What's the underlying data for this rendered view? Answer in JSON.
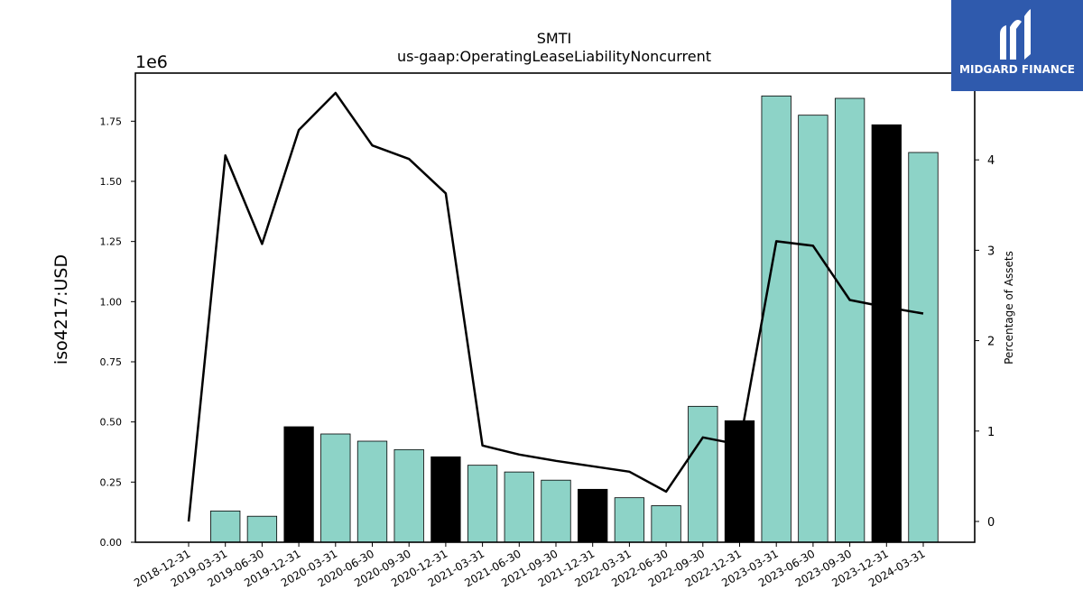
{
  "chart_data": {
    "type": "bar",
    "title": "SMTI",
    "subtitle": "us-gaap:OperatingLeaseLiabilityNoncurrent",
    "ylabel": "iso4217:USD",
    "y_offset_label": "1e6",
    "y2label": "Percentage of Assets",
    "ylim": [
      0,
      1950000
    ],
    "y2lim": [
      -0.23,
      4.96
    ],
    "yticks": [
      "0.00",
      "0.25",
      "0.50",
      "0.75",
      "1.00",
      "1.25",
      "1.50",
      "1.75"
    ],
    "y2ticks": [
      "0",
      "1",
      "2",
      "3",
      "4"
    ],
    "categories": [
      "2018-12-31",
      "2019-03-31",
      "2019-06-30",
      "2019-12-31",
      "2020-03-31",
      "2020-06-30",
      "2020-09-30",
      "2020-12-31",
      "2021-03-31",
      "2021-06-30",
      "2021-09-30",
      "2021-12-31",
      "2022-03-31",
      "2022-06-30",
      "2022-09-30",
      "2022-12-31",
      "2023-03-31",
      "2023-06-30",
      "2023-09-30",
      "2023-12-31",
      "2024-03-31"
    ],
    "series": [
      {
        "type": "bar",
        "values": [
          0,
          130000,
          108000,
          480000,
          450000,
          420000,
          385000,
          355000,
          320000,
          292000,
          258000,
          220000,
          185000,
          152000,
          565000,
          505000,
          1855000,
          1775000,
          1845000,
          1735000,
          1620000
        ],
        "colors": [
          "#8dd3c7",
          "#8dd3c7",
          "#8dd3c7",
          "#000000",
          "#8dd3c7",
          "#8dd3c7",
          "#8dd3c7",
          "#000000",
          "#8dd3c7",
          "#8dd3c7",
          "#8dd3c7",
          "#000000",
          "#8dd3c7",
          "#8dd3c7",
          "#8dd3c7",
          "#000000",
          "#8dd3c7",
          "#8dd3c7",
          "#8dd3c7",
          "#000000",
          "#8dd3c7"
        ]
      },
      {
        "type": "line",
        "axis": "right",
        "values": [
          0.0,
          4.05,
          3.07,
          4.33,
          4.74,
          4.16,
          4.01,
          3.63,
          0.84,
          0.74,
          0.67,
          0.61,
          0.55,
          0.33,
          0.93,
          0.85,
          3.1,
          3.05,
          2.45,
          2.37,
          2.3
        ]
      }
    ],
    "grid": false
  },
  "logo": {
    "text": "MIDGARD FINANCE",
    "color": "#2f5aad"
  }
}
